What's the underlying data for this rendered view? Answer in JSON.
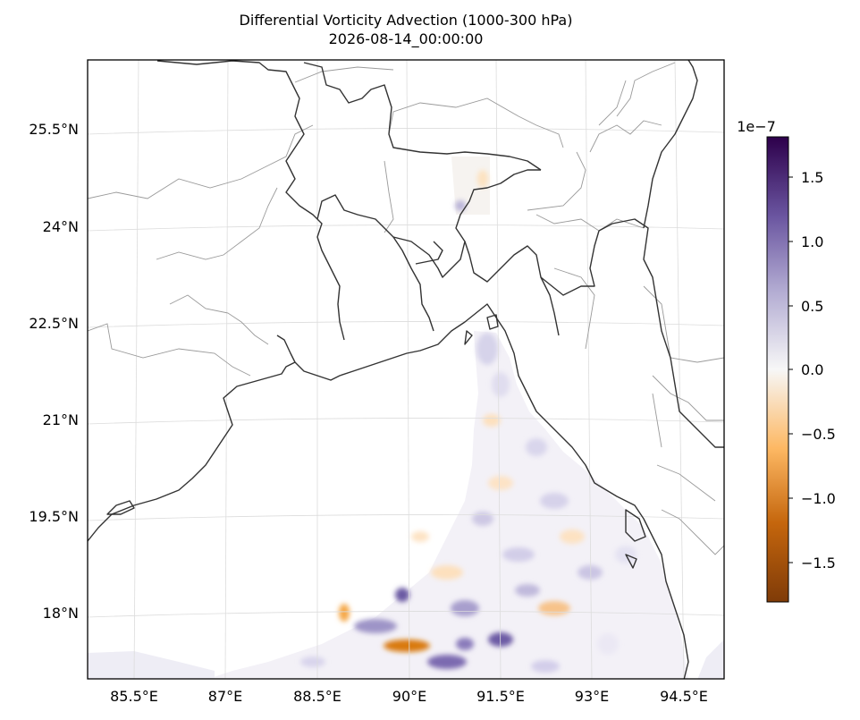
{
  "figure": {
    "title_line1": "Differential Vorticity Advection (1000-300 hPa)",
    "title_line2": "2026-08-14_00:00:00"
  },
  "map": {
    "lon_labels": [
      "85.5°E",
      "87°E",
      "88.5°E",
      "90°E",
      "91.5°E",
      "93°E",
      "94.5°E"
    ],
    "lat_labels": [
      "25.5°N",
      "24°N",
      "22.5°N",
      "21°N",
      "19.5°N",
      "18°N"
    ]
  },
  "colorbar": {
    "multiplier": "1e−7",
    "tick_labels": [
      "1.5",
      "1.0",
      "0.5",
      "0.0",
      "−0.5",
      "−1.0",
      "−1.5"
    ],
    "colormap": "PuOr",
    "colors": [
      "#7f3b08",
      "#e08214",
      "#fdb863",
      "#f7f7f7",
      "#b2abd2",
      "#8073ac",
      "#2d004b"
    ]
  }
}
